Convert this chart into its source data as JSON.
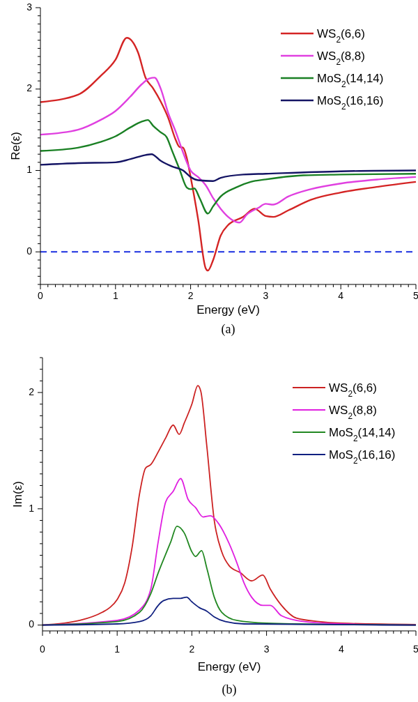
{
  "chart_data": [
    {
      "type": "line",
      "xlabel": "Energy (eV)",
      "ylabel": "Re(ε)",
      "annotations": [
        "(a)"
      ],
      "legend": "top right",
      "grid": false,
      "line_style": "solid",
      "xlim": [
        0,
        5
      ],
      "ylim": [
        -0.4,
        3
      ],
      "xticks": [
        0,
        {
          "value": 0.1,
          "label": null
        },
        {
          "value": 0.2,
          "label": null
        },
        {
          "value": 0.3,
          "label": null
        },
        {
          "value": 0.4,
          "label": null
        },
        {
          "value": 0.5,
          "label": null
        },
        {
          "value": 0.6,
          "label": null
        },
        {
          "value": 0.7,
          "label": null
        },
        {
          "value": 0.8,
          "label": null
        },
        {
          "value": 0.9,
          "label": null
        },
        1,
        {
          "value": 1.1,
          "label": null
        },
        {
          "value": 1.2,
          "label": null
        },
        {
          "value": 1.3,
          "label": null
        },
        {
          "value": 1.4,
          "label": null
        },
        {
          "value": 1.5,
          "label": null
        },
        {
          "value": 1.6,
          "label": null
        },
        {
          "value": 1.7,
          "label": null
        },
        {
          "value": 1.8,
          "label": null
        },
        {
          "value": 1.9,
          "label": null
        },
        2,
        {
          "value": 2.1,
          "label": null
        },
        {
          "value": 2.2,
          "label": null
        },
        {
          "value": 2.3,
          "label": null
        },
        {
          "value": 2.4,
          "label": null
        },
        {
          "value": 2.5,
          "label": null
        },
        {
          "value": 2.6,
          "label": null
        },
        {
          "value": 2.7,
          "label": null
        },
        {
          "value": 2.8,
          "label": null
        },
        {
          "value": 2.9,
          "label": null
        },
        3,
        {
          "value": 3.1,
          "label": null
        },
        {
          "value": 3.2,
          "label": null
        },
        {
          "value": 3.3,
          "label": null
        },
        {
          "value": 3.4,
          "label": null
        },
        {
          "value": 3.5,
          "label": null
        },
        {
          "value": 3.6,
          "label": null
        },
        {
          "value": 3.7,
          "label": null
        },
        {
          "value": 3.8,
          "label": null
        },
        {
          "value": 3.9,
          "label": null
        },
        4,
        {
          "value": 4.1,
          "label": null
        },
        {
          "value": 4.2,
          "label": null
        },
        {
          "value": 4.3,
          "label": null
        },
        {
          "value": 4.4,
          "label": null
        },
        {
          "value": 4.5,
          "label": null
        },
        {
          "value": 4.6,
          "label": null
        },
        {
          "value": 4.7,
          "label": null
        },
        {
          "value": 4.8,
          "label": null
        },
        {
          "value": 4.9,
          "label": null
        },
        5
      ],
      "yticks": [
        {
          "value": -0.4,
          "label": null
        },
        {
          "value": -0.3,
          "label": null
        },
        {
          "value": -0.2,
          "label": null
        },
        {
          "value": -0.1,
          "label": null
        },
        0,
        {
          "value": 0.1,
          "label": null
        },
        {
          "value": 0.2,
          "label": null
        },
        {
          "value": 0.3,
          "label": null
        },
        {
          "value": 0.4,
          "label": null
        },
        {
          "value": 0.5,
          "label": null
        },
        {
          "value": 0.6,
          "label": null
        },
        {
          "value": 0.7,
          "label": null
        },
        {
          "value": 0.8,
          "label": null
        },
        {
          "value": 0.9,
          "label": null
        },
        1,
        {
          "value": 1.1,
          "label": null
        },
        {
          "value": 1.2,
          "label": null
        },
        {
          "value": 1.3,
          "label": null
        },
        {
          "value": 1.4,
          "label": null
        },
        {
          "value": 1.5,
          "label": null
        },
        {
          "value": 1.6,
          "label": null
        },
        {
          "value": 1.7,
          "label": null
        },
        {
          "value": 1.8,
          "label": null
        },
        {
          "value": 1.9,
          "label": null
        },
        2,
        {
          "value": 2.1,
          "label": null
        },
        {
          "value": 2.2,
          "label": null
        },
        {
          "value": 2.3,
          "label": null
        },
        {
          "value": 2.4,
          "label": null
        },
        {
          "value": 2.5,
          "label": null
        },
        {
          "value": 2.6,
          "label": null
        },
        {
          "value": 2.7,
          "label": null
        },
        {
          "value": 2.8,
          "label": null
        },
        {
          "value": 2.9,
          "label": null
        },
        3
      ],
      "ref_lines": [
        {
          "axis": "y",
          "value": 0,
          "color": "#1a2ee0",
          "line_style": "dashed"
        }
      ],
      "series": [
        {
          "name": "WS$_{2}$(6,6)",
          "color": "#d42424",
          "x": [
            0,
            0.5,
            0.8,
            1.0,
            1.15,
            1.3,
            1.4,
            1.5,
            1.6,
            1.7,
            1.8,
            1.85,
            1.9,
            1.95,
            2.0,
            2.1,
            2.2,
            2.23,
            2.3,
            2.4,
            2.5,
            2.7,
            2.85,
            3.0,
            3.1,
            3.3,
            3.6,
            4.0,
            4.5,
            5.0
          ],
          "values": [
            1.84,
            1.93,
            2.16,
            2.36,
            2.63,
            2.45,
            2.14,
            2.01,
            1.85,
            1.65,
            1.38,
            1.29,
            1.28,
            1.15,
            0.92,
            0.4,
            -0.2,
            -0.23,
            -0.1,
            0.2,
            0.33,
            0.43,
            0.53,
            0.44,
            0.43,
            0.51,
            0.64,
            0.73,
            0.8,
            0.86
          ]
        },
        {
          "name": "WS$_{2}$(8,8)",
          "color": "#e040e0",
          "x": [
            0,
            0.5,
            0.8,
            1.0,
            1.2,
            1.35,
            1.45,
            1.52,
            1.6,
            1.7,
            1.8,
            1.9,
            2.0,
            2.1,
            2.2,
            2.3,
            2.4,
            2.5,
            2.6,
            2.65,
            2.75,
            2.9,
            3.0,
            3.1,
            3.3,
            3.6,
            4.0,
            4.5,
            5.0
          ],
          "values": [
            1.44,
            1.5,
            1.62,
            1.73,
            1.91,
            2.06,
            2.13,
            2.14,
            2.01,
            1.71,
            1.48,
            1.22,
            1.0,
            0.92,
            0.82,
            0.66,
            0.53,
            0.43,
            0.37,
            0.36,
            0.46,
            0.54,
            0.59,
            0.58,
            0.68,
            0.77,
            0.84,
            0.89,
            0.92
          ]
        },
        {
          "name": "MoS$_{2}$(14,14)",
          "color": "#1a8024",
          "x": [
            0,
            0.5,
            0.8,
            1.0,
            1.2,
            1.35,
            1.43,
            1.5,
            1.6,
            1.68,
            1.75,
            1.85,
            1.95,
            2.0,
            2.05,
            2.12,
            2.23,
            2.3,
            2.4,
            2.6,
            2.8,
            3.0,
            3.5,
            4.0,
            5.0
          ],
          "values": [
            1.24,
            1.28,
            1.35,
            1.42,
            1.53,
            1.6,
            1.62,
            1.55,
            1.47,
            1.41,
            1.25,
            1.02,
            0.79,
            0.77,
            0.78,
            0.66,
            0.47,
            0.56,
            0.68,
            0.79,
            0.86,
            0.89,
            0.94,
            0.95,
            0.96
          ]
        },
        {
          "name": "MoS$_{2}$(16,16)",
          "color": "#141464",
          "x": [
            0,
            0.5,
            1.0,
            1.2,
            1.4,
            1.48,
            1.6,
            1.75,
            1.9,
            2.0,
            2.1,
            2.3,
            2.4,
            2.7,
            3.0,
            4.0,
            5.0
          ],
          "values": [
            1.07,
            1.09,
            1.1,
            1.14,
            1.19,
            1.2,
            1.12,
            1.05,
            1.0,
            0.92,
            0.88,
            0.87,
            0.91,
            0.95,
            0.96,
            0.99,
            1.0
          ]
        }
      ]
    },
    {
      "type": "line",
      "xlabel": "Energy (eV)",
      "ylabel": "Im(ε)",
      "annotations": [
        "(b)"
      ],
      "legend": "top right",
      "grid": false,
      "line_style": "solid",
      "xlim": [
        0,
        5
      ],
      "ylim": [
        -0.05,
        2.3
      ],
      "xticks": [
        0,
        {
          "value": 0.1,
          "label": null
        },
        {
          "value": 0.2,
          "label": null
        },
        {
          "value": 0.3,
          "label": null
        },
        {
          "value": 0.4,
          "label": null
        },
        {
          "value": 0.5,
          "label": null
        },
        {
          "value": 0.6,
          "label": null
        },
        {
          "value": 0.7,
          "label": null
        },
        {
          "value": 0.8,
          "label": null
        },
        {
          "value": 0.9,
          "label": null
        },
        1,
        {
          "value": 1.1,
          "label": null
        },
        {
          "value": 1.2,
          "label": null
        },
        {
          "value": 1.3,
          "label": null
        },
        {
          "value": 1.4,
          "label": null
        },
        {
          "value": 1.5,
          "label": null
        },
        {
          "value": 1.6,
          "label": null
        },
        {
          "value": 1.7,
          "label": null
        },
        {
          "value": 1.8,
          "label": null
        },
        {
          "value": 1.9,
          "label": null
        },
        2,
        {
          "value": 2.1,
          "label": null
        },
        {
          "value": 2.2,
          "label": null
        },
        {
          "value": 2.3,
          "label": null
        },
        {
          "value": 2.4,
          "label": null
        },
        {
          "value": 2.5,
          "label": null
        },
        {
          "value": 2.6,
          "label": null
        },
        {
          "value": 2.7,
          "label": null
        },
        {
          "value": 2.8,
          "label": null
        },
        {
          "value": 2.9,
          "label": null
        },
        3,
        {
          "value": 3.1,
          "label": null
        },
        {
          "value": 3.2,
          "label": null
        },
        {
          "value": 3.3,
          "label": null
        },
        {
          "value": 3.4,
          "label": null
        },
        {
          "value": 3.5,
          "label": null
        },
        {
          "value": 3.6,
          "label": null
        },
        {
          "value": 3.7,
          "label": null
        },
        {
          "value": 3.8,
          "label": null
        },
        {
          "value": 3.9,
          "label": null
        },
        4,
        {
          "value": 4.1,
          "label": null
        },
        {
          "value": 4.2,
          "label": null
        },
        {
          "value": 4.3,
          "label": null
        },
        {
          "value": 4.4,
          "label": null
        },
        {
          "value": 4.5,
          "label": null
        },
        {
          "value": 4.6,
          "label": null
        },
        {
          "value": 4.7,
          "label": null
        },
        {
          "value": 4.8,
          "label": null
        },
        {
          "value": 4.9,
          "label": null
        },
        5
      ],
      "yticks": [
        0,
        {
          "value": 0.1,
          "label": null
        },
        {
          "value": 0.2,
          "label": null
        },
        {
          "value": 0.3,
          "label": null
        },
        {
          "value": 0.4,
          "label": null
        },
        {
          "value": 0.5,
          "label": null
        },
        {
          "value": 0.6,
          "label": null
        },
        {
          "value": 0.7,
          "label": null
        },
        {
          "value": 0.8,
          "label": null
        },
        {
          "value": 0.9,
          "label": null
        },
        1,
        {
          "value": 1.1,
          "label": null
        },
        {
          "value": 1.2,
          "label": null
        },
        {
          "value": 1.3,
          "label": null
        },
        {
          "value": 1.4,
          "label": null
        },
        {
          "value": 1.5,
          "label": null
        },
        {
          "value": 1.6,
          "label": null
        },
        {
          "value": 1.7,
          "label": null
        },
        {
          "value": 1.8,
          "label": null
        },
        {
          "value": 1.9,
          "label": null
        },
        2,
        {
          "value": 2.1,
          "label": null
        },
        {
          "value": 2.2,
          "label": null
        },
        {
          "value": 2.3,
          "label": null
        }
      ],
      "series": [
        {
          "name": "WS$_{2}$(6,6)",
          "color": "#cc2222",
          "x": [
            0,
            0.5,
            0.8,
            0.9,
            1.0,
            1.1,
            1.2,
            1.3,
            1.38,
            1.45,
            1.55,
            1.65,
            1.75,
            1.83,
            1.9,
            2.0,
            2.08,
            2.12,
            2.2,
            2.3,
            2.4,
            2.5,
            2.65,
            2.8,
            2.95,
            3.05,
            3.2,
            3.4,
            3.7,
            4.0,
            5.0
          ],
          "values": [
            0,
            0.04,
            0.11,
            0.15,
            0.22,
            0.36,
            0.67,
            1.13,
            1.35,
            1.38,
            1.49,
            1.61,
            1.72,
            1.64,
            1.74,
            1.9,
            2.06,
            2.01,
            1.54,
            0.9,
            0.63,
            0.51,
            0.45,
            0.38,
            0.43,
            0.31,
            0.17,
            0.06,
            0.03,
            0.016,
            0.005
          ]
        },
        {
          "name": "WS$_{2}$(8,8)",
          "color": "#e020e0",
          "x": [
            0,
            1.0,
            1.3,
            1.45,
            1.55,
            1.65,
            1.75,
            1.85,
            1.95,
            2.05,
            2.15,
            2.25,
            2.35,
            2.5,
            2.6,
            2.7,
            2.8,
            2.95,
            3.05,
            3.2,
            3.5,
            4.0,
            5.0
          ],
          "values": [
            0,
            0.04,
            0.13,
            0.31,
            0.72,
            1.06,
            1.15,
            1.26,
            1.08,
            1.01,
            0.93,
            0.94,
            0.88,
            0.7,
            0.54,
            0.36,
            0.24,
            0.17,
            0.17,
            0.08,
            0.03,
            0.01,
            0
          ]
        },
        {
          "name": "MoS$_{2}$(14,14)",
          "color": "#228822",
          "x": [
            0,
            1.0,
            1.3,
            1.45,
            1.55,
            1.65,
            1.72,
            1.8,
            1.9,
            2.0,
            2.05,
            2.13,
            2.2,
            2.3,
            2.4,
            2.6,
            3.0,
            4.0,
            5.0
          ],
          "values": [
            0,
            0.03,
            0.11,
            0.27,
            0.45,
            0.61,
            0.72,
            0.85,
            0.79,
            0.63,
            0.59,
            0.64,
            0.49,
            0.24,
            0.11,
            0.04,
            0.016,
            0.005,
            0
          ]
        },
        {
          "name": "MoS$_{2}$(16,16)",
          "color": "#102080",
          "x": [
            0,
            1.0,
            1.3,
            1.45,
            1.55,
            1.62,
            1.75,
            1.85,
            1.93,
            2.0,
            2.1,
            2.2,
            2.3,
            2.45,
            2.7,
            5.0
          ],
          "values": [
            0,
            0.01,
            0.03,
            0.08,
            0.17,
            0.21,
            0.23,
            0.23,
            0.24,
            0.2,
            0.15,
            0.12,
            0.07,
            0.03,
            0.01,
            0
          ]
        }
      ]
    }
  ]
}
